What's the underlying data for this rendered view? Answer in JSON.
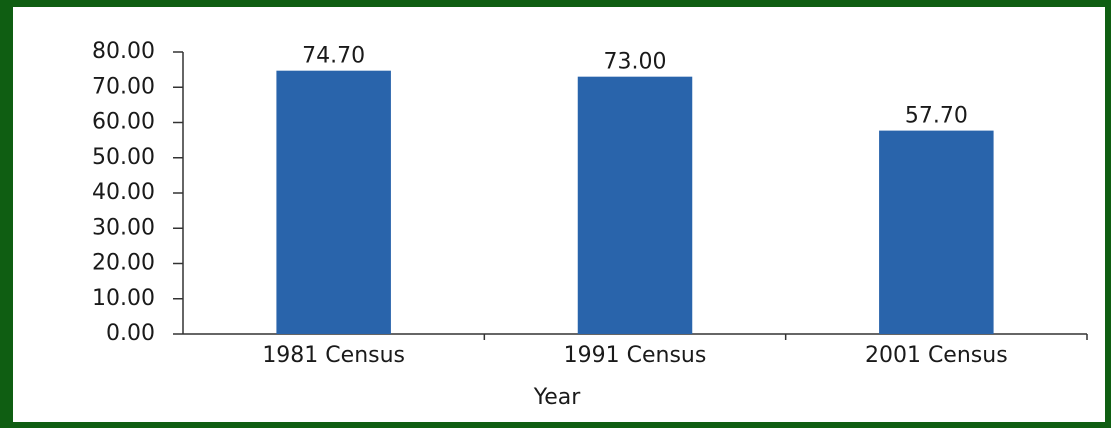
{
  "chart_data": {
    "type": "bar",
    "xlabel": "Year",
    "categories": [
      "1981 Census",
      "1991 Census",
      "2001 Census"
    ],
    "values": [
      74.7,
      73,
      57.7
    ],
    "value_labels": [
      "74.70",
      "73.00",
      "57.70"
    ],
    "color": "#2964ab",
    "ylim": [
      0,
      80
    ],
    "yticks": [
      {
        "value": 0,
        "label": "0.00"
      },
      {
        "value": 10,
        "label": "10.00"
      },
      {
        "value": 20,
        "label": "20.00"
      },
      {
        "value": 30,
        "label": "30.00"
      },
      {
        "value": 40,
        "label": "40.00"
      },
      {
        "value": 50,
        "label": "50.00"
      },
      {
        "value": 60,
        "label": "60.00"
      },
      {
        "value": 70,
        "label": "70.00"
      },
      {
        "value": 80,
        "label": "80.00"
      }
    ],
    "grid": false
  }
}
